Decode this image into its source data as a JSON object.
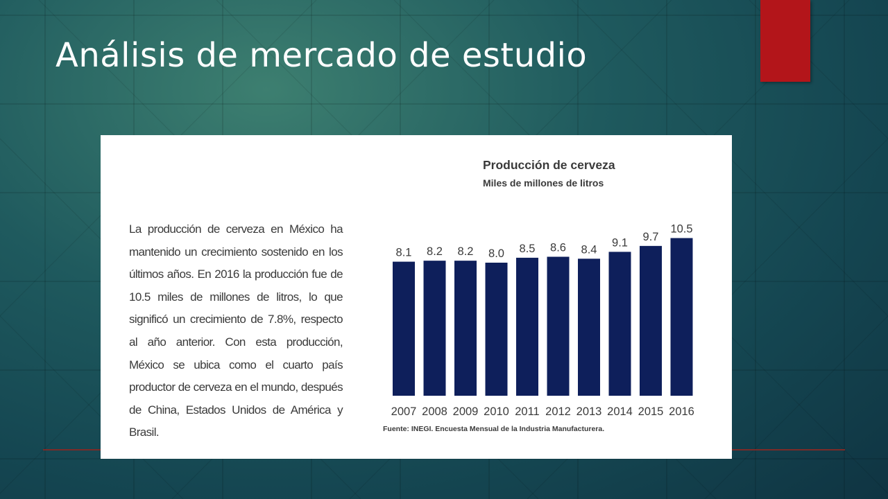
{
  "slide": {
    "title": "Análisis de mercado de estudio",
    "description": "La producción de cerveza en México ha mantenido un crecimiento sostenido en los últimos años. En 2016 la producción fue de 10.5 miles de millones de litros, lo que significó un crecimiento de 7.8%, respecto al año anterior. Con esta producción, México se ubica como el cuarto país productor de cerveza en el mundo, después de China, Estados Unidos de América y Brasil.",
    "accent_color": "#b3151a"
  },
  "chart_data": {
    "type": "bar",
    "title": "Producción de cerveza",
    "subtitle": "Miles de millones de litros",
    "categories": [
      "2007",
      "2008",
      "2009",
      "2010",
      "2011",
      "2012",
      "2013",
      "2014",
      "2015",
      "2016"
    ],
    "values": [
      8.1,
      8.2,
      8.2,
      8.0,
      8.5,
      8.6,
      8.4,
      9.1,
      9.7,
      10.5
    ],
    "value_labels": [
      "8.1",
      "8.2",
      "8.2",
      "8.0",
      "8.5",
      "8.6",
      "8.4",
      "9.1",
      "9.7",
      "10.5"
    ],
    "ylim": [
      0,
      10.5
    ],
    "grid": false,
    "legend": "none",
    "bar_color": "#0e1f5b",
    "source": "Fuente: INEGI. Encuesta Mensual de la Industria Manufacturera."
  }
}
